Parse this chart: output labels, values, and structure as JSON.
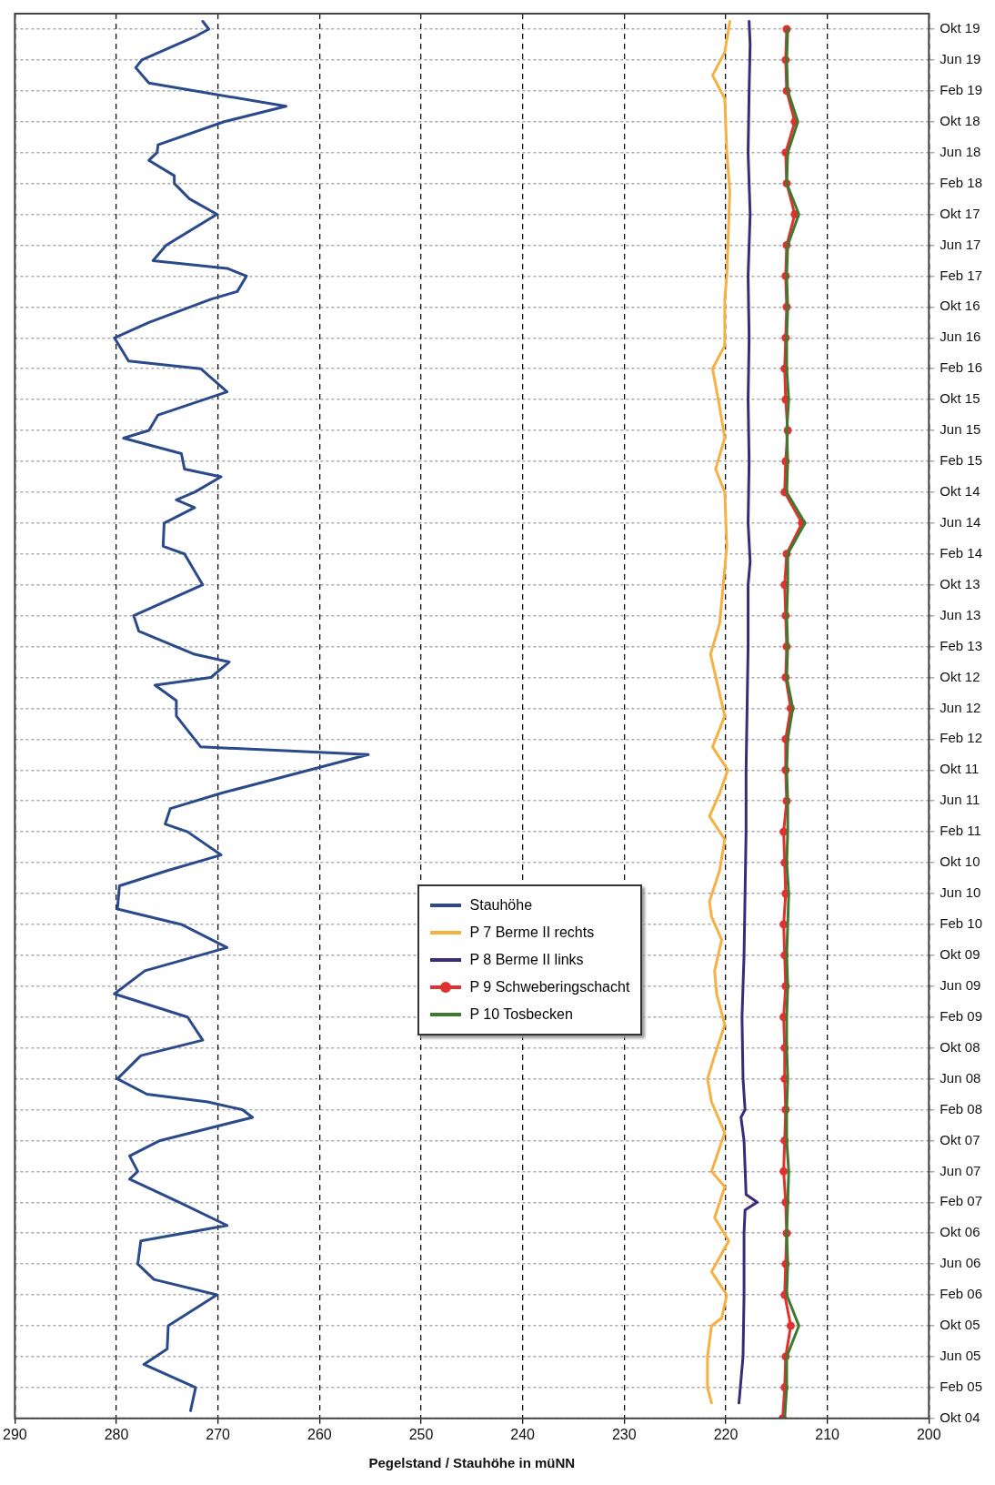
{
  "chart_data": {
    "type": "line",
    "orientation": "horizontal",
    "xlabel": "Pegelstand / Stauhöhe in müNN",
    "ylim": [
      "2004-10",
      "2019-12"
    ],
    "xlim": [
      290,
      200
    ],
    "xticks": [
      290,
      280,
      270,
      260,
      250,
      240,
      230,
      220,
      210,
      200
    ],
    "yticks": [
      {
        "value": "2004-10",
        "label": "Okt 04"
      },
      {
        "value": "2005-02",
        "label": "Feb 05"
      },
      {
        "value": "2005-06",
        "label": "Jun 05"
      },
      {
        "value": "2005-10",
        "label": "Okt 05"
      },
      {
        "value": "2006-02",
        "label": "Feb 06"
      },
      {
        "value": "2006-06",
        "label": "Jun 06"
      },
      {
        "value": "2006-10",
        "label": "Okt 06"
      },
      {
        "value": "2007-02",
        "label": "Feb 07"
      },
      {
        "value": "2007-06",
        "label": "Jun 07"
      },
      {
        "value": "2007-10",
        "label": "Okt 07"
      },
      {
        "value": "2008-02",
        "label": "Feb 08"
      },
      {
        "value": "2008-06",
        "label": "Jun 08"
      },
      {
        "value": "2008-10",
        "label": "Okt 08"
      },
      {
        "value": "2009-02",
        "label": "Feb 09"
      },
      {
        "value": "2009-06",
        "label": "Jun 09"
      },
      {
        "value": "2009-10",
        "label": "Okt 09"
      },
      {
        "value": "2010-02",
        "label": "Feb 10"
      },
      {
        "value": "2010-06",
        "label": "Jun 10"
      },
      {
        "value": "2010-10",
        "label": "Okt 10"
      },
      {
        "value": "2011-02",
        "label": "Feb 11"
      },
      {
        "value": "2011-06",
        "label": "Jun 11"
      },
      {
        "value": "2011-10",
        "label": "Okt 11"
      },
      {
        "value": "2012-02",
        "label": "Feb 12"
      },
      {
        "value": "2012-06",
        "label": "Jun 12"
      },
      {
        "value": "2012-10",
        "label": "Okt 12"
      },
      {
        "value": "2013-02",
        "label": "Feb 13"
      },
      {
        "value": "2013-06",
        "label": "Jun 13"
      },
      {
        "value": "2013-10",
        "label": "Okt 13"
      },
      {
        "value": "2014-02",
        "label": "Feb 14"
      },
      {
        "value": "2014-06",
        "label": "Jun 14"
      },
      {
        "value": "2014-10",
        "label": "Okt 14"
      },
      {
        "value": "2015-02",
        "label": "Feb 15"
      },
      {
        "value": "2015-06",
        "label": "Jun 15"
      },
      {
        "value": "2015-10",
        "label": "Okt 15"
      },
      {
        "value": "2016-02",
        "label": "Feb 16"
      },
      {
        "value": "2016-06",
        "label": "Jun 16"
      },
      {
        "value": "2016-10",
        "label": "Okt 16"
      },
      {
        "value": "2017-02",
        "label": "Feb 17"
      },
      {
        "value": "2017-06",
        "label": "Jun 17"
      },
      {
        "value": "2017-10",
        "label": "Okt 17"
      },
      {
        "value": "2018-02",
        "label": "Feb 18"
      },
      {
        "value": "2018-06",
        "label": "Jun 18"
      },
      {
        "value": "2018-10",
        "label": "Okt 18"
      },
      {
        "value": "2019-02",
        "label": "Feb 19"
      },
      {
        "value": "2019-06",
        "label": "Jun 19"
      },
      {
        "value": "2019-10",
        "label": "Okt 19"
      }
    ],
    "grid": true,
    "legend": "bottom",
    "marker": "none",
    "series": [
      {
        "name": "Stauhöhe",
        "color": "#2b4a8b",
        "x": [
          "2004-11",
          "2005-02",
          "2005-05",
          "2005-07",
          "2005-10",
          "2006-02",
          "2006-04",
          "2006-06",
          "2006-09",
          "2006-11",
          "2007-02",
          "2007-05",
          "2007-06",
          "2007-08",
          "2007-10",
          "2008-01",
          "2008-02",
          "2008-03",
          "2008-04",
          "2008-06",
          "2008-09",
          "2008-11",
          "2009-02",
          "2009-05",
          "2009-08",
          "2009-11",
          "2010-02",
          "2010-04",
          "2010-07",
          "2010-09",
          "2010-11",
          "2011-02",
          "2011-03",
          "2011-05",
          "2011-07",
          "2011-10",
          "2011-12",
          "2012-01",
          "2012-02",
          "2012-05",
          "2012-07",
          "2012-09",
          "2012-10",
          "2012-12",
          "2013-01",
          "2013-04",
          "2013-06",
          "2013-10",
          "2014-02",
          "2014-03",
          "2014-06",
          "2014-08",
          "2014-09",
          "2014-10",
          "2014-12",
          "2015-01",
          "2015-03",
          "2015-05",
          "2015-06",
          "2015-08",
          "2015-11",
          "2016-02",
          "2016-03",
          "2016-06",
          "2016-08",
          "2016-11",
          "2016-12",
          "2017-02",
          "2017-03",
          "2017-04",
          "2017-06",
          "2017-10",
          "2017-12",
          "2018-02",
          "2018-03",
          "2018-05",
          "2018-06",
          "2018-07",
          "2018-10",
          "2018-12",
          "2019-03",
          "2019-05",
          "2019-06",
          "2019-09",
          "2019-10",
          "2019-11"
        ],
        "values": [
          272.7,
          272.2,
          277.3,
          275.0,
          274.9,
          270.1,
          276.3,
          277.9,
          277.6,
          269.1,
          273.8,
          278.7,
          277.9,
          278.7,
          275.7,
          266.6,
          267.6,
          271.0,
          277.0,
          279.9,
          277.6,
          271.5,
          273.0,
          280.2,
          277.2,
          269.1,
          273.6,
          279.9,
          279.7,
          274.9,
          269.7,
          273.0,
          275.2,
          274.7,
          269.7,
          261.0,
          255.2,
          271.7,
          272.3,
          274.1,
          274.1,
          276.2,
          270.7,
          268.9,
          272.3,
          277.8,
          278.3,
          271.5,
          273.3,
          275.4,
          275.3,
          272.3,
          274.1,
          272.3,
          269.7,
          273.3,
          273.6,
          279.3,
          276.8,
          275.9,
          269.1,
          271.7,
          278.8,
          280.2,
          276.8,
          270.7,
          268.1,
          267.2,
          269.1,
          276.4,
          275.1,
          270.1,
          272.8,
          274.3,
          274.3,
          276.8,
          276.0,
          275.9,
          269.4,
          263.3,
          276.8,
          278.1,
          277.5,
          272.3,
          270.9,
          271.5
        ]
      },
      {
        "name": "P 7 Berme II rechts",
        "color": "#f7b042",
        "x": [
          "2004-12",
          "2005-02",
          "2005-06",
          "2005-10",
          "2005-11",
          "2006-02",
          "2006-05",
          "2006-09",
          "2006-12",
          "2007-04",
          "2007-06",
          "2007-11",
          "2008-03",
          "2008-06",
          "2008-09",
          "2009-01",
          "2009-05",
          "2009-08",
          "2009-12",
          "2010-03",
          "2010-05",
          "2010-09",
          "2011-01",
          "2011-04",
          "2011-07",
          "2011-10",
          "2012-01",
          "2012-05",
          "2013-01",
          "2013-05",
          "2014-03",
          "2014-10",
          "2015-01",
          "2015-05",
          "2015-09",
          "2016-02",
          "2016-05",
          "2016-11",
          "2017-02",
          "2018-01",
          "2018-06",
          "2019-01",
          "2019-04",
          "2019-07",
          "2019-11"
        ],
        "values": [
          221.4,
          221.8,
          221.8,
          221.4,
          220.4,
          219.9,
          221.4,
          219.7,
          221.1,
          220.1,
          221.4,
          220.1,
          221.4,
          221.8,
          221.1,
          220.1,
          220.9,
          221.1,
          220.4,
          221.4,
          221.6,
          220.6,
          220.1,
          221.6,
          220.6,
          219.8,
          221.3,
          220.1,
          221.5,
          220.6,
          219.9,
          220.1,
          221.0,
          220.1,
          220.6,
          221.3,
          220.1,
          220.1,
          219.9,
          219.6,
          219.9,
          220.1,
          221.3,
          220.1,
          219.6
        ]
      },
      {
        "name": "P 8 Berme II links",
        "color": "#3b2a7a",
        "x": [
          "2004-12",
          "2005-06",
          "2006-02",
          "2006-10",
          "2007-01",
          "2007-02",
          "2007-03",
          "2007-10",
          "2008-01",
          "2008-02",
          "2008-06",
          "2009-02",
          "2009-10",
          "2010-06",
          "2011-02",
          "2011-10",
          "2012-06",
          "2013-02",
          "2013-10",
          "2014-01",
          "2014-06",
          "2015-02",
          "2015-10",
          "2016-06",
          "2017-02",
          "2017-10",
          "2018-06",
          "2019-02",
          "2019-08",
          "2019-11"
        ],
        "values": [
          218.7,
          218.3,
          218.2,
          218.2,
          218.1,
          216.9,
          218.0,
          218.2,
          218.5,
          218.1,
          218.3,
          218.4,
          218.2,
          218.1,
          218.0,
          218.0,
          217.9,
          217.8,
          217.8,
          217.6,
          217.8,
          217.7,
          217.8,
          217.7,
          217.8,
          217.6,
          217.8,
          217.7,
          217.6,
          217.7
        ]
      },
      {
        "name": "P 9 Schweberingschacht",
        "color": "#e0312f",
        "marker": "circle",
        "x": [
          "2004-10",
          "2005-02",
          "2005-06",
          "2005-10",
          "2006-02",
          "2006-06",
          "2006-10",
          "2007-02",
          "2007-06",
          "2007-10",
          "2008-02",
          "2008-06",
          "2008-10",
          "2009-02",
          "2009-06",
          "2009-10",
          "2010-02",
          "2010-06",
          "2010-10",
          "2011-02",
          "2011-06",
          "2011-10",
          "2012-02",
          "2012-06",
          "2012-10",
          "2013-02",
          "2013-06",
          "2013-10",
          "2014-02",
          "2014-06",
          "2014-10",
          "2015-02",
          "2015-06",
          "2015-10",
          "2016-02",
          "2016-06",
          "2016-10",
          "2017-02",
          "2017-06",
          "2017-10",
          "2018-02",
          "2018-06",
          "2018-10",
          "2019-02",
          "2019-06",
          "2019-10"
        ],
        "values": [
          214.4,
          214.2,
          214.1,
          213.6,
          214.2,
          214.1,
          214.0,
          214.1,
          214.3,
          214.2,
          214.1,
          214.2,
          214.2,
          214.3,
          214.1,
          214.2,
          214.3,
          214.1,
          214.2,
          214.3,
          214.0,
          214.1,
          214.1,
          213.6,
          214.1,
          214.0,
          214.1,
          214.2,
          214.0,
          212.5,
          214.2,
          214.1,
          213.9,
          214.1,
          214.2,
          214.1,
          214.0,
          214.1,
          214.0,
          213.2,
          214.0,
          214.1,
          213.2,
          214.0,
          214.1,
          214.0
        ]
      },
      {
        "name": "P 10 Tosbecken",
        "color": "#3d7a2f",
        "x": [
          "2004-10",
          "2005-02",
          "2005-06",
          "2005-10",
          "2006-02",
          "2006-06",
          "2006-10",
          "2007-02",
          "2007-06",
          "2007-10",
          "2008-02",
          "2008-06",
          "2008-10",
          "2009-02",
          "2009-06",
          "2009-10",
          "2010-02",
          "2010-06",
          "2010-10",
          "2011-02",
          "2011-06",
          "2011-10",
          "2012-02",
          "2012-06",
          "2012-10",
          "2013-02",
          "2013-06",
          "2013-10",
          "2014-02",
          "2014-06",
          "2014-10",
          "2015-02",
          "2015-06",
          "2015-10",
          "2016-02",
          "2016-06",
          "2016-10",
          "2017-02",
          "2017-06",
          "2017-10",
          "2018-02",
          "2018-06",
          "2018-10",
          "2019-02",
          "2019-06",
          "2019-10"
        ],
        "values": [
          214.2,
          214.0,
          214.0,
          212.8,
          214.0,
          213.9,
          214.0,
          213.9,
          213.8,
          214.0,
          214.0,
          213.9,
          214.0,
          214.0,
          213.9,
          214.0,
          213.9,
          213.8,
          214.0,
          213.9,
          213.9,
          214.0,
          213.9,
          213.4,
          214.0,
          213.9,
          214.0,
          213.9,
          213.9,
          212.2,
          214.0,
          213.9,
          214.0,
          213.8,
          214.0,
          214.0,
          213.9,
          214.0,
          213.9,
          212.8,
          214.0,
          213.9,
          212.9,
          213.9,
          214.0,
          213.9
        ]
      }
    ]
  }
}
